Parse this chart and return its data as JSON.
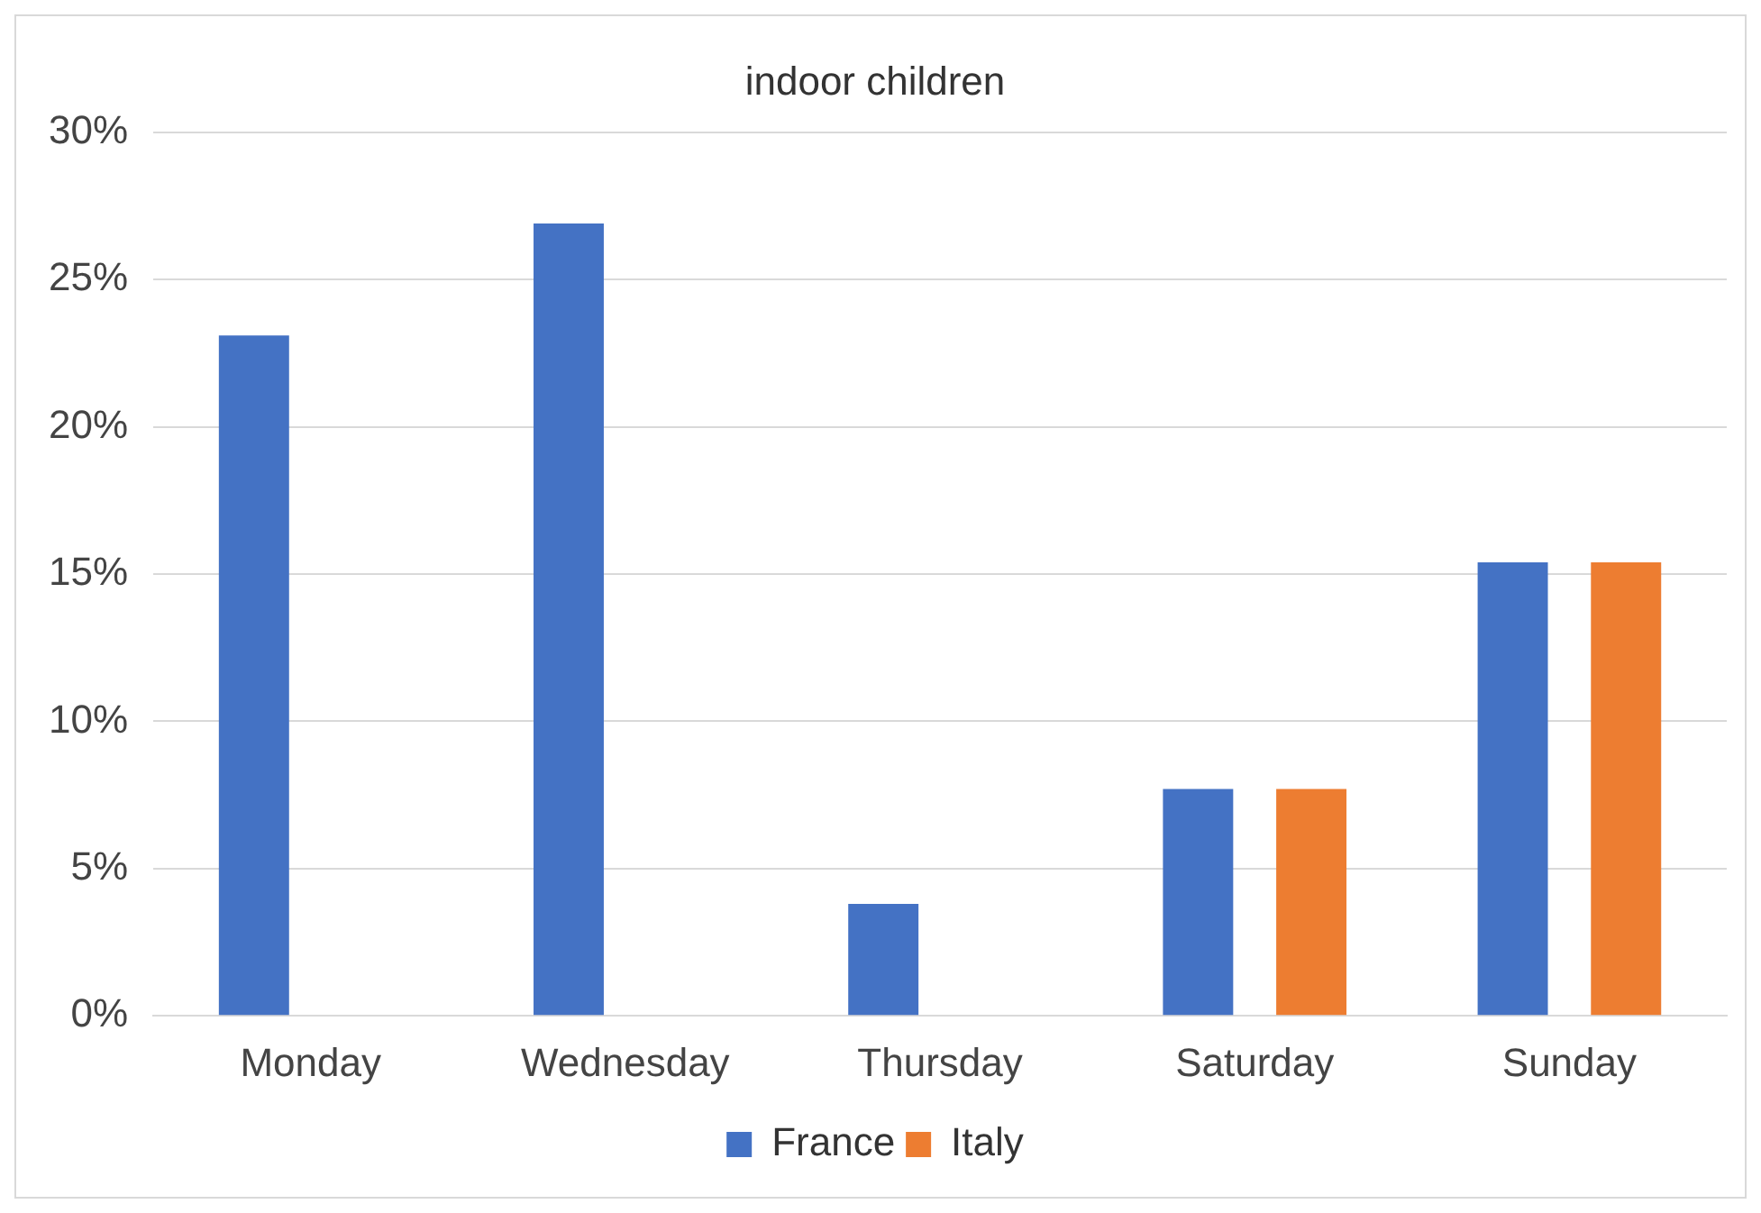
{
  "chart_data": {
    "type": "bar",
    "title": "indoor children",
    "categories": [
      "Monday",
      "Wednesday",
      "Thursday",
      "Saturday",
      "Sunday"
    ],
    "series": [
      {
        "name": "France",
        "color": "#4472c4",
        "values": [
          23.1,
          26.9,
          3.8,
          7.7,
          15.4
        ]
      },
      {
        "name": "Italy",
        "color": "#ed7d31",
        "values": [
          0,
          0,
          0,
          7.7,
          15.4
        ]
      }
    ],
    "ylim": [
      0,
      30
    ],
    "yticks": [
      {
        "value": 0,
        "label": "0%"
      },
      {
        "value": 5,
        "label": "5%"
      },
      {
        "value": 10,
        "label": "10%"
      },
      {
        "value": 15,
        "label": "15%"
      },
      {
        "value": 20,
        "label": "20%"
      },
      {
        "value": 25,
        "label": "25%"
      },
      {
        "value": 30,
        "label": "30%"
      }
    ],
    "grid": "y",
    "legend": "bottom"
  }
}
